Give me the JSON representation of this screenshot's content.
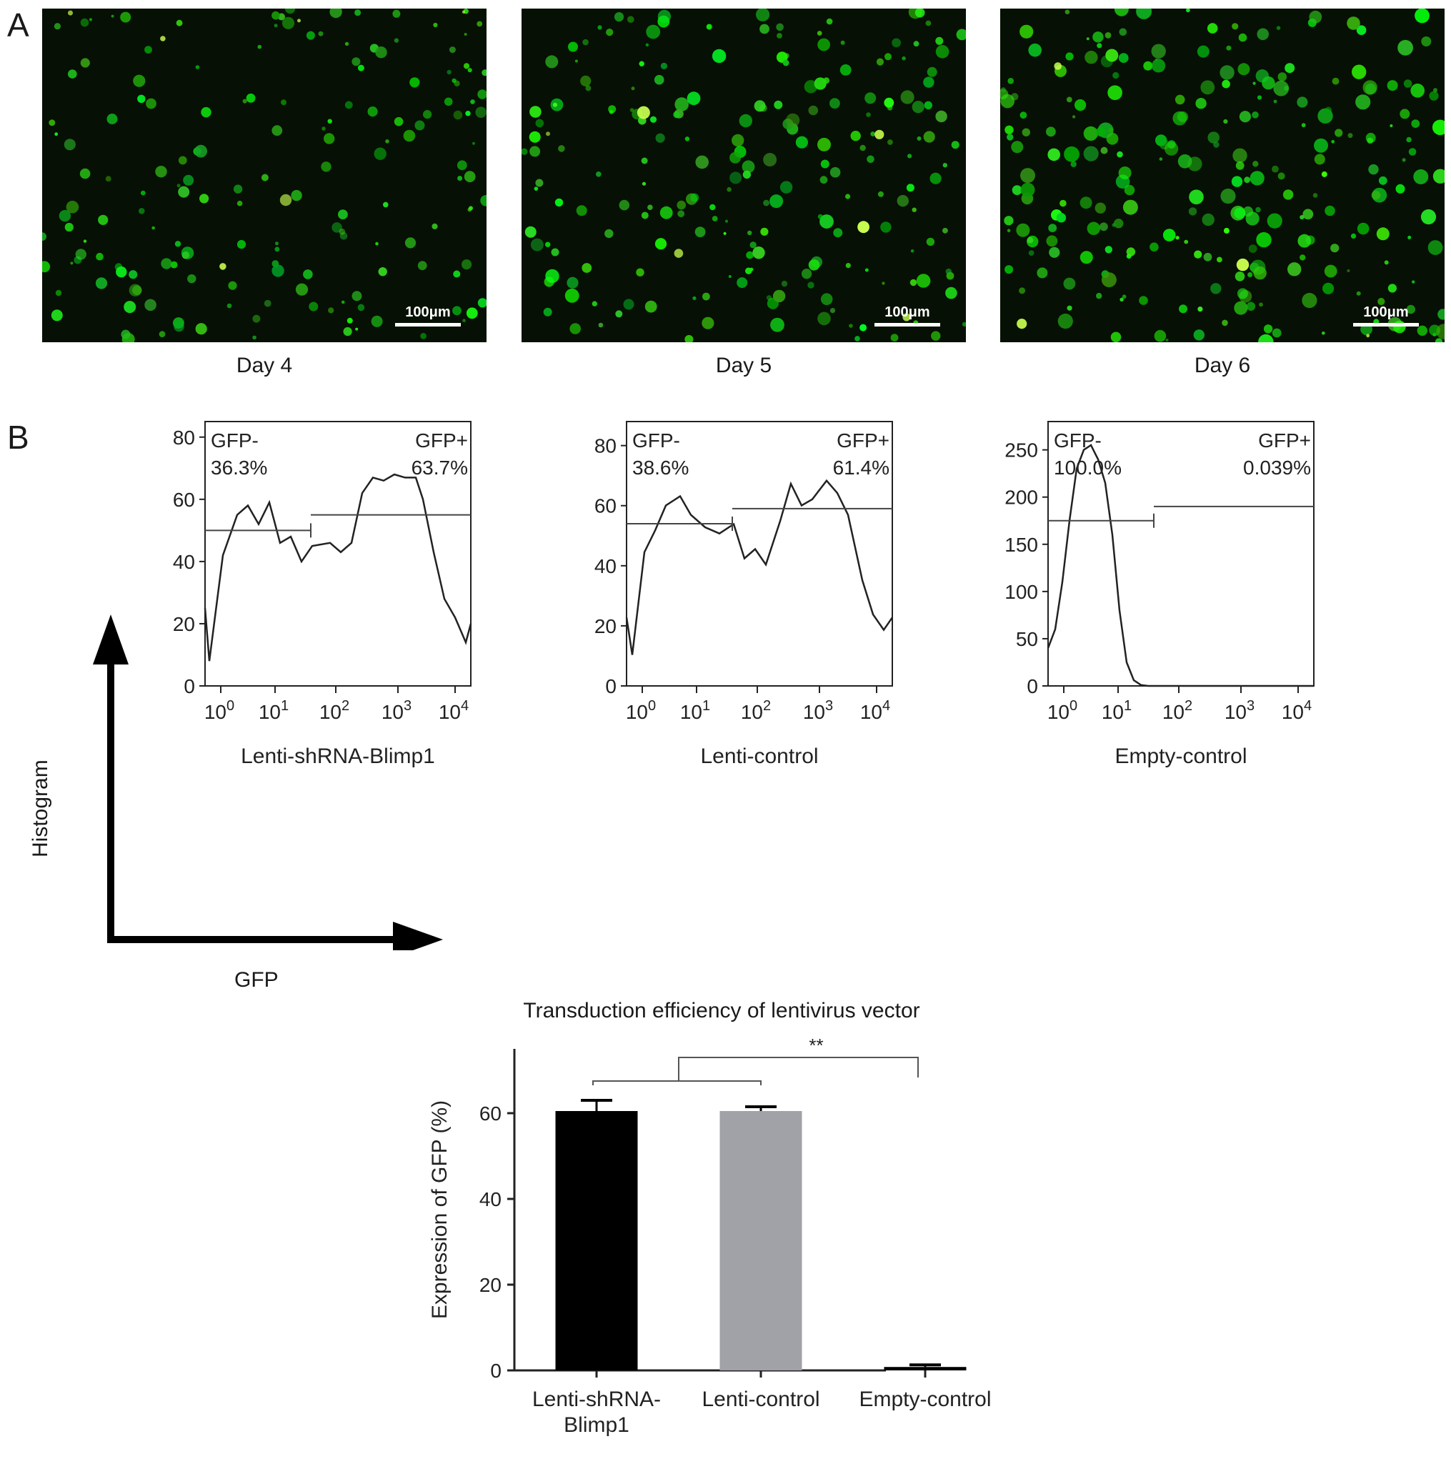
{
  "panels": {
    "a_label": "A",
    "b_label": "B"
  },
  "micrographs": [
    {
      "day": "Day 4",
      "scale_bar": "100μm"
    },
    {
      "day": "Day 5",
      "scale_bar": "100μm"
    },
    {
      "day": "Day 6",
      "scale_bar": "100μm"
    }
  ],
  "histograms": [
    {
      "xlabel": "Lenti-shRNA-Blimp1",
      "yticks": [
        "0",
        "20",
        "40",
        "60",
        "80"
      ],
      "ymax": 85,
      "neg_label": "GFP-",
      "neg_pct": "36.3%",
      "pos_label": "GFP+",
      "pos_pct": "63.7%"
    },
    {
      "xlabel": "Lenti-control",
      "yticks": [
        "0",
        "20",
        "40",
        "60",
        "80"
      ],
      "ymax": 88,
      "neg_label": "GFP-",
      "neg_pct": "38.6%",
      "pos_label": "GFP+",
      "pos_pct": "61.4%"
    },
    {
      "xlabel": "Empty-control",
      "yticks": [
        "0",
        "50",
        "100",
        "150",
        "200",
        "250"
      ],
      "ymax": 280,
      "neg_label": "GFP-",
      "neg_pct": "100.0%",
      "pos_label": "GFP+",
      "pos_pct": "0.039%"
    }
  ],
  "xtick_base": "10",
  "xtick_exponents": [
    "0",
    "1",
    "2",
    "3",
    "4"
  ],
  "axes_key": {
    "y_label": "Histogram",
    "x_label": "GFP"
  },
  "chart_data": {
    "type": "bar",
    "title": "Transduction efficiency of lentivirus vector",
    "ylabel": "Expression of GFP (%)",
    "xlabel": "",
    "categories": [
      [
        "Lenti-shRNA-",
        "Blimp1"
      ],
      [
        "Lenti-control"
      ],
      [
        "Empty-control"
      ]
    ],
    "values": [
      60.5,
      60.5,
      0.8
    ],
    "errors": [
      2.5,
      1.0,
      0.5
    ],
    "ylim": [
      0,
      75
    ],
    "yticks": [
      0,
      20,
      40,
      60
    ],
    "bar_colors": [
      "#000000",
      "#a1a1a8",
      "#000000"
    ],
    "significance": "**"
  }
}
